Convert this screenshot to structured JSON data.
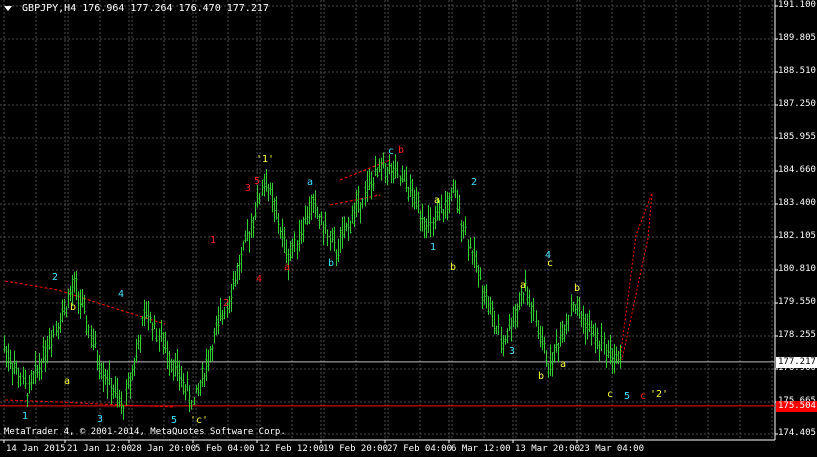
{
  "header": {
    "symbol_timeframe": "GBPJPY,H4",
    "ohlc": "176.964 177.264 176.470 177.217"
  },
  "footer": {
    "copyright": "MetaTrader 4, © 2001-2014, MetaQuotes Software Corp."
  },
  "colors": {
    "background": "#000000",
    "grid": "#4a4a4a",
    "candles": "#32cd32",
    "text": "#ffffff",
    "support_line": "#ff0000",
    "wave_red": "#ff2020",
    "wave_yellow": "#ffff40",
    "wave_cyan": "#40e0ff",
    "current_price_line": "#c0c0c0"
  },
  "axis": {
    "price_ticks": [
      "191.100",
      "189.805",
      "188.510",
      "187.250",
      "185.955",
      "184.660",
      "183.400",
      "182.105",
      "180.810",
      "179.550",
      "178.255",
      "176.960",
      "175.665",
      "174.405"
    ],
    "date_ticks": [
      "14 Jan 2015",
      "21 Jan 12:00",
      "28 Jan 20:00",
      "5 Feb 04:00",
      "12 Feb 12:00",
      "19 Feb 20:00",
      "27 Feb 04:00",
      "6 Mar 12:00",
      "13 Mar 20:00",
      "23 Mar 04:00"
    ]
  },
  "price_tags": {
    "current": "177.217",
    "support": "175.504"
  },
  "chart_data": {
    "type": "line",
    "title": "GBPJPY,H4",
    "xlabel": "",
    "ylabel": "",
    "ylim": [
      174.405,
      191.1
    ],
    "grid": true,
    "series": [
      {
        "values": [
          {
            "x": "13 Jan 2015",
            "y": 177.8
          },
          {
            "x": "14 Jan 2015",
            "y": 176.0
          },
          {
            "x": "16 Jan 2015",
            "y": 178.3
          },
          {
            "x": "19 Jan 2015",
            "y": 180.2
          },
          {
            "x": "21 Jan 2015",
            "y": 177.2
          },
          {
            "x": "22 Jan 2015",
            "y": 175.4
          },
          {
            "x": "26 Jan 2015",
            "y": 179.2
          },
          {
            "x": "28 Jan 2015",
            "y": 177.4
          },
          {
            "x": "30 Jan 2015",
            "y": 175.6
          },
          {
            "x": "2 Feb 2015",
            "y": 178.5
          },
          {
            "x": "5 Feb 2015",
            "y": 181.2
          },
          {
            "x": "10 Feb 2015",
            "y": 184.4
          },
          {
            "x": "12 Feb 2015",
            "y": 181.3
          },
          {
            "x": "16 Feb 2015",
            "y": 183.4
          },
          {
            "x": "18 Feb 2015",
            "y": 181.5
          },
          {
            "x": "20 Feb 2015",
            "y": 183.5
          },
          {
            "x": "24 Feb 2015",
            "y": 184.9
          },
          {
            "x": "27 Feb 2015",
            "y": 184.1
          },
          {
            "x": "3 Mar 2015",
            "y": 182.4
          },
          {
            "x": "5 Mar 2015",
            "y": 183.8
          },
          {
            "x": "10 Mar 2015",
            "y": 180.7
          },
          {
            "x": "13 Mar 2015",
            "y": 177.9
          },
          {
            "x": "16 Mar 2015",
            "y": 180.1
          },
          {
            "x": "17 Mar 2015",
            "y": 177.0
          },
          {
            "x": "19 Mar 2015",
            "y": 179.5
          },
          {
            "x": "23 Mar 2015",
            "y": 178.1
          },
          {
            "x": "26 Mar 2015",
            "y": 177.2
          }
        ]
      }
    ]
  },
  "wave_labels": [
    {
      "text": "1",
      "color": "cyan"
    },
    {
      "text": "2",
      "color": "cyan"
    },
    {
      "text": "b",
      "color": "yellow"
    },
    {
      "text": "a",
      "color": "yellow"
    },
    {
      "text": "3",
      "color": "cyan"
    },
    {
      "text": "4",
      "color": "cyan"
    },
    {
      "text": "5",
      "color": "cyan"
    },
    {
      "text": "'c'",
      "color": "yellow"
    },
    {
      "text": "1",
      "color": "red"
    },
    {
      "text": "2",
      "color": "red"
    },
    {
      "text": "3",
      "color": "red"
    },
    {
      "text": "4",
      "color": "red"
    },
    {
      "text": "5",
      "color": "red"
    },
    {
      "text": "'1'",
      "color": "yellow"
    },
    {
      "text": "a",
      "color": "red"
    },
    {
      "text": "a",
      "color": "cyan"
    },
    {
      "text": "b",
      "color": "cyan"
    },
    {
      "text": "c",
      "color": "cyan"
    },
    {
      "text": "b",
      "color": "red"
    },
    {
      "text": "a",
      "color": "yellow"
    },
    {
      "text": "1",
      "color": "cyan"
    },
    {
      "text": "b",
      "color": "yellow"
    },
    {
      "text": "2",
      "color": "cyan"
    },
    {
      "text": "a",
      "color": "yellow"
    },
    {
      "text": "3",
      "color": "cyan"
    },
    {
      "text": "b",
      "color": "yellow"
    },
    {
      "text": "4",
      "color": "cyan"
    },
    {
      "text": "c",
      "color": "yellow"
    },
    {
      "text": "a",
      "color": "yellow"
    },
    {
      "text": "b",
      "color": "yellow"
    },
    {
      "text": "c",
      "color": "yellow"
    },
    {
      "text": "5",
      "color": "cyan"
    },
    {
      "text": "c",
      "color": "red"
    },
    {
      "text": "'2'",
      "color": "yellow"
    }
  ]
}
